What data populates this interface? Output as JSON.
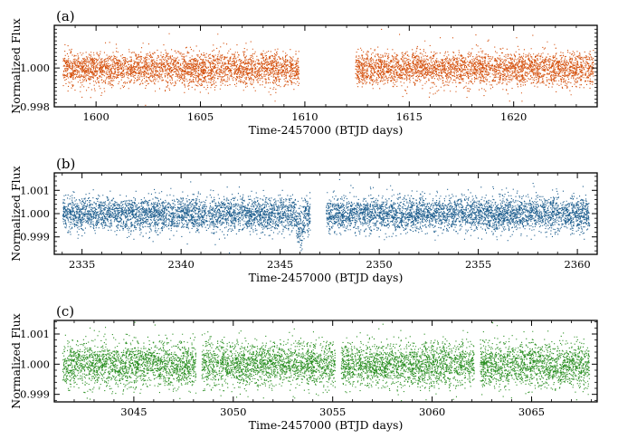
{
  "chart_data": [
    {
      "type": "scatter",
      "panel_label": "(a)",
      "xlabel": "Time-2457000 (BTJD days)",
      "ylabel": "Normalized Flux",
      "xlim": [
        1598.0,
        1624.0
      ],
      "ylim": [
        0.998,
        1.0022
      ],
      "x_ticks": [
        1600,
        1605,
        1610,
        1615,
        1620
      ],
      "x_tick_labels": [
        "1600",
        "1605",
        "1610",
        "1615",
        "1620"
      ],
      "y_ticks": [
        0.998,
        1.0
      ],
      "y_tick_labels": [
        "0.998",
        "1.000"
      ],
      "color": "#d5520f",
      "flux_center": 1.0,
      "flux_scatter": 0.00042,
      "segments": [
        [
          1598.4,
          1609.7
        ],
        [
          1612.4,
          1623.8
        ]
      ],
      "dips": []
    },
    {
      "type": "scatter",
      "panel_label": "(b)",
      "xlabel": "Time-2457000 (BTJD days)",
      "ylabel": "Normalized Flux",
      "xlim": [
        2333.6,
        2361.0
      ],
      "ylim": [
        0.99825,
        1.00175
      ],
      "x_ticks": [
        2335,
        2340,
        2345,
        2350,
        2355,
        2360
      ],
      "x_tick_labels": [
        "2335",
        "2340",
        "2345",
        "2350",
        "2355",
        "2360"
      ],
      "y_ticks": [
        0.999,
        1.0,
        1.001
      ],
      "y_tick_labels": [
        "0.999",
        "1.000",
        "1.001"
      ],
      "color": "#1f5f8f",
      "flux_center": 1.0,
      "flux_scatter": 0.00036,
      "segments": [
        [
          2334.0,
          2346.5
        ],
        [
          2347.3,
          2360.6
        ]
      ],
      "dips": [
        {
          "t": 2346.0,
          "depth": 0.0013,
          "width": 0.25
        }
      ]
    },
    {
      "type": "scatter",
      "panel_label": "(c)",
      "xlabel": "Time-2457000 (BTJD days)",
      "ylabel": "Normalized Flux",
      "xlim": [
        3041.0,
        3068.3
      ],
      "ylim": [
        0.99875,
        1.00145
      ],
      "x_ticks": [
        3045,
        3050,
        3055,
        3060,
        3065
      ],
      "x_tick_labels": [
        "3045",
        "3050",
        "3055",
        "3060",
        "3065"
      ],
      "y_ticks": [
        0.999,
        1.0,
        1.001
      ],
      "y_tick_labels": [
        "0.999",
        "1.000",
        "1.001"
      ],
      "color": "#2a8f22",
      "flux_center": 1.0,
      "flux_scatter": 0.00036,
      "segments": [
        [
          3041.4,
          3048.1
        ],
        [
          3048.4,
          3055.1
        ],
        [
          3055.4,
          3062.1
        ],
        [
          3062.4,
          3067.9
        ]
      ],
      "dips": []
    }
  ]
}
